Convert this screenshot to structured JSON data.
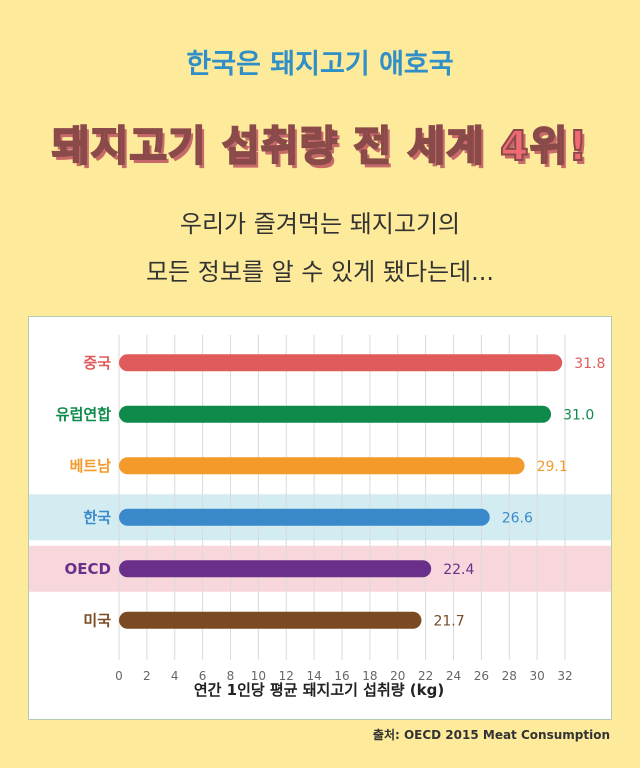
{
  "header": {
    "subtitle": "한국은 돼지고기 애호국",
    "title": "돼지고기 섭취량 전 세계 4위!",
    "desc_line1": "우리가 즐겨먹는 돼지고기의",
    "desc_line2": "모든 정보를 알 수 있게 됐다는데..."
  },
  "chart_data": {
    "type": "bar",
    "orientation": "horizontal",
    "categories": [
      "중국",
      "유럽연합",
      "베트남",
      "한국",
      "OECD",
      "미국"
    ],
    "values": [
      31.8,
      31.0,
      29.1,
      26.6,
      22.4,
      21.7
    ],
    "value_labels": [
      "31.8",
      "31.0",
      "29.1",
      "26.6",
      "22.4",
      "21.7"
    ],
    "colors": [
      "#E05C5C",
      "#0E8A4A",
      "#F39A2B",
      "#3A8ACB",
      "#6A2F8A",
      "#7A4A22"
    ],
    "highlight_rows": [
      {
        "category": "한국",
        "color": "#D3ECF2"
      },
      {
        "category": "OECD",
        "color": "#F8D7DC"
      }
    ],
    "xlim": [
      0,
      32
    ],
    "xticks": [
      0,
      2,
      4,
      6,
      8,
      10,
      12,
      14,
      16,
      18,
      20,
      22,
      24,
      26,
      28,
      30,
      32
    ],
    "xlabel": "연간 1인당 평균 돼지고기 섭취량 (kg)",
    "grid": true
  },
  "footer": {
    "source": "출처: OECD 2015 Meat Consumption"
  }
}
